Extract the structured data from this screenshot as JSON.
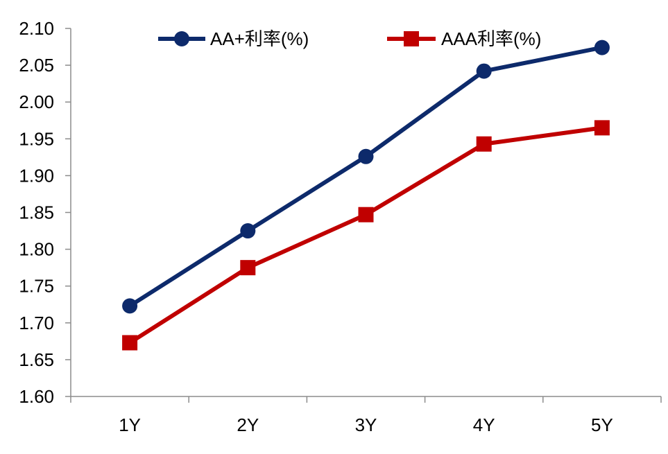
{
  "chart_data": {
    "type": "line",
    "categories": [
      "1Y",
      "2Y",
      "3Y",
      "4Y",
      "5Y"
    ],
    "series": [
      {
        "name": "AA+利率(%)",
        "values": [
          1.723,
          1.825,
          1.926,
          2.042,
          2.074
        ],
        "color": "#0d2a6b",
        "marker": "circle"
      },
      {
        "name": "AAA利率(%)",
        "values": [
          1.673,
          1.775,
          1.847,
          1.943,
          1.965
        ],
        "color": "#c00000",
        "marker": "square"
      }
    ],
    "yticks": [
      "1.60",
      "1.65",
      "1.70",
      "1.75",
      "1.80",
      "1.85",
      "1.90",
      "1.95",
      "2.00",
      "2.05",
      "2.10"
    ],
    "ylim": [
      1.6,
      2.1
    ],
    "grid": false,
    "legend_position": "top"
  }
}
